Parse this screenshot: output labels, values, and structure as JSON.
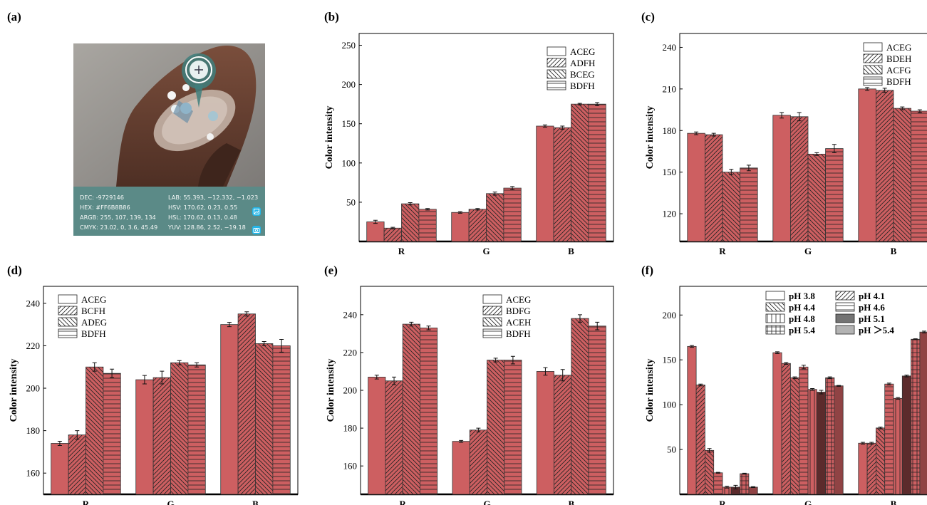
{
  "panel_labels": [
    "(a)",
    "(b)",
    "(c)",
    "(d)",
    "(e)",
    "(f)"
  ],
  "photo_info": {
    "dec": "DEC: -9729146",
    "hex": "HEX: #FF6B8B86",
    "argb": "ARGB: 255, 107, 139, 134",
    "cmyk": "CMYK: 23.02, 0, 3.6, 45.49",
    "lab": "LAB: 55.393, −12.332, −1.023",
    "hsv": "HSV: 170.62, 0.23, 0.55",
    "hsl": "HSL: 170.62, 0.13, 0.48",
    "yuv": "YUV: 128.86, 2.52, −19.18"
  },
  "colors": {
    "R": "#cd5f61",
    "G": "#5ecc93",
    "B": "#9c98cb",
    "axis": "#000000"
  },
  "chart_data": [
    {
      "type": "bar",
      "panel": "(b)",
      "ylabel": "Color intensity",
      "ylim": [
        0,
        265
      ],
      "yticks": [
        50,
        100,
        150,
        200,
        250
      ],
      "categories": [
        "R",
        "G",
        "B"
      ],
      "legend_position": "top-right",
      "series": [
        {
          "name": "ACEG",
          "pattern": "none",
          "values": [
            25,
            37,
            147
          ],
          "errors": [
            2,
            1,
            1.5
          ]
        },
        {
          "name": "ADFH",
          "pattern": "fwd",
          "values": [
            17,
            41,
            145
          ],
          "errors": [
            1,
            1,
            2
          ]
        },
        {
          "name": "BCEG",
          "pattern": "back",
          "values": [
            48,
            61,
            175
          ],
          "errors": [
            1.5,
            2,
            1
          ]
        },
        {
          "name": "BDFH",
          "pattern": "horiz",
          "values": [
            41,
            68,
            175
          ],
          "errors": [
            1,
            2,
            2
          ]
        }
      ]
    },
    {
      "type": "bar",
      "panel": "(c)",
      "ylabel": "Color intensity",
      "ylim": [
        100,
        250
      ],
      "yticks": [
        120,
        150,
        180,
        210,
        240
      ],
      "categories": [
        "R",
        "G",
        "B"
      ],
      "legend_position": "top-right",
      "series": [
        {
          "name": "ACEG",
          "pattern": "none",
          "values": [
            178,
            191,
            210
          ],
          "errors": [
            1,
            2,
            1
          ]
        },
        {
          "name": "BDEH",
          "pattern": "fwd",
          "values": [
            177,
            190,
            209
          ],
          "errors": [
            1,
            3,
            1.5
          ]
        },
        {
          "name": "ACFG",
          "pattern": "back",
          "values": [
            150,
            163,
            196
          ],
          "errors": [
            2,
            1,
            1
          ]
        },
        {
          "name": "BDFH",
          "pattern": "horiz",
          "values": [
            153,
            167,
            194
          ],
          "errors": [
            2,
            3,
            1
          ]
        }
      ]
    },
    {
      "type": "bar",
      "panel": "(d)",
      "ylabel": "Color intensity",
      "ylim": [
        150,
        248
      ],
      "yticks": [
        160,
        180,
        200,
        220,
        240
      ],
      "categories": [
        "R",
        "G",
        "B"
      ],
      "legend_position": "top-left",
      "series": [
        {
          "name": "ACEG",
          "pattern": "none",
          "values": [
            174,
            204,
            230
          ],
          "errors": [
            1,
            2,
            1
          ]
        },
        {
          "name": "BCFH",
          "pattern": "fwd",
          "values": [
            178,
            205,
            235
          ],
          "errors": [
            2,
            3,
            1
          ]
        },
        {
          "name": "ADEG",
          "pattern": "back",
          "values": [
            210,
            212,
            221
          ],
          "errors": [
            2,
            1,
            1
          ]
        },
        {
          "name": "BDFH",
          "pattern": "horiz",
          "values": [
            207,
            211,
            220
          ],
          "errors": [
            2,
            1,
            3
          ]
        }
      ]
    },
    {
      "type": "bar",
      "panel": "(e)",
      "ylabel": "Color intensity",
      "ylim": [
        145,
        255
      ],
      "yticks": [
        160,
        180,
        200,
        220,
        240
      ],
      "categories": [
        "R",
        "G",
        "B"
      ],
      "legend_position": "top-left",
      "series": [
        {
          "name": "ACEG",
          "pattern": "none",
          "values": [
            207,
            173,
            210
          ],
          "errors": [
            1,
            0.5,
            2
          ]
        },
        {
          "name": "BDFG",
          "pattern": "fwd",
          "values": [
            205,
            179,
            208
          ],
          "errors": [
            2,
            1,
            3
          ]
        },
        {
          "name": "ACEH",
          "pattern": "back",
          "values": [
            235,
            216,
            238
          ],
          "errors": [
            1,
            1,
            2
          ]
        },
        {
          "name": "BDFH",
          "pattern": "horiz",
          "values": [
            233,
            216,
            234
          ],
          "errors": [
            1,
            2,
            2
          ]
        }
      ]
    },
    {
      "type": "bar",
      "panel": "(f)",
      "ylabel": "Color intensity",
      "ylim": [
        0,
        232
      ],
      "yticks": [
        50,
        100,
        150,
        200
      ],
      "categories": [
        "R",
        "G",
        "B"
      ],
      "legend_position": "top-right",
      "series": [
        {
          "name": "pH 3.8",
          "pattern": "none",
          "values": [
            165,
            158,
            57
          ],
          "errors": [
            1,
            1,
            1
          ]
        },
        {
          "name": "pH 4.1",
          "pattern": "fwd",
          "values": [
            122,
            146,
            57
          ],
          "errors": [
            1,
            1,
            1
          ]
        },
        {
          "name": "pH 4.4",
          "pattern": "back",
          "values": [
            49,
            130,
            74
          ],
          "errors": [
            2,
            1,
            1
          ]
        },
        {
          "name": "pH 4.6",
          "pattern": "horiz",
          "values": [
            24,
            142,
            123
          ],
          "errors": [
            0.5,
            2,
            1
          ]
        },
        {
          "name": "pH 4.8",
          "pattern": "vert",
          "values": [
            8,
            117,
            107
          ],
          "errors": [
            1,
            1,
            1
          ]
        },
        {
          "name": "pH 5.1",
          "pattern": "dark",
          "values": [
            8,
            114,
            132
          ],
          "errors": [
            2,
            2,
            1
          ]
        },
        {
          "name": "pH 5.4",
          "pattern": "grid",
          "values": [
            23,
            130,
            173
          ],
          "errors": [
            0.5,
            1,
            0.5
          ]
        },
        {
          "name": "pH ＞5.4",
          "pattern": "light",
          "values": [
            8,
            121,
            181
          ],
          "errors": [
            0.5,
            0.5,
            1
          ]
        }
      ]
    }
  ]
}
